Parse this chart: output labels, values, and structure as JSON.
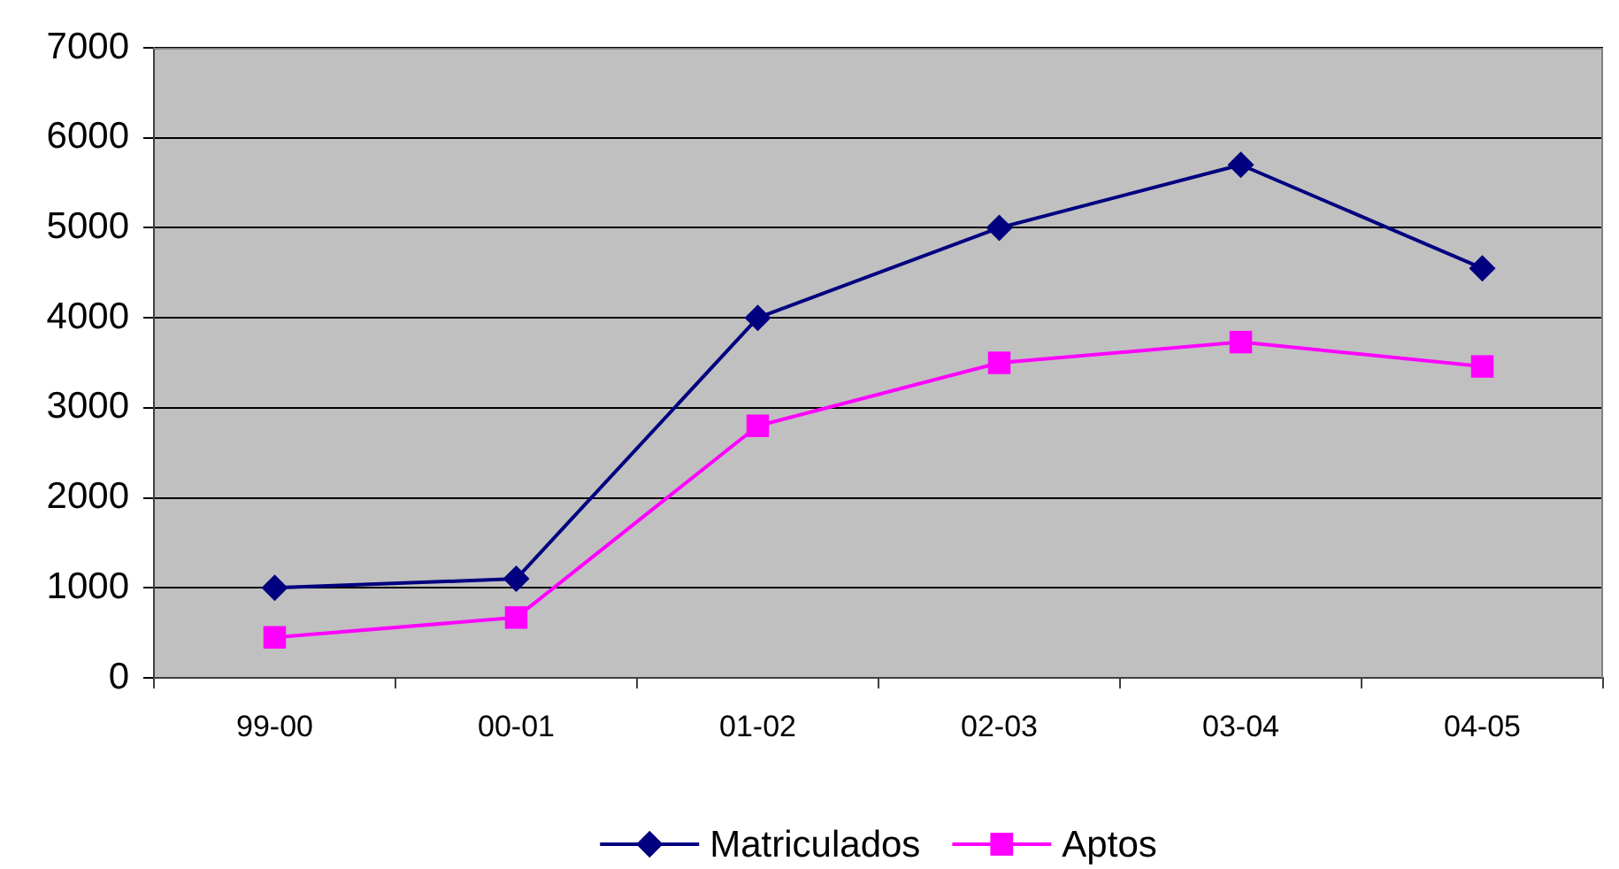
{
  "chart_data": {
    "type": "line",
    "categories": [
      "99-00",
      "00-01",
      "01-02",
      "02-03",
      "03-04",
      "04-05"
    ],
    "series": [
      {
        "name": "Matriculados",
        "color": "#000080",
        "marker": "diamond",
        "values": [
          1000,
          1100,
          4000,
          5000,
          5700,
          4550
        ]
      },
      {
        "name": "Aptos",
        "color": "#ff00ff",
        "marker": "square",
        "values": [
          450,
          670,
          2800,
          3500,
          3730,
          3460
        ]
      }
    ],
    "ylim": [
      0,
      7000
    ],
    "yticks": [
      0,
      1000,
      2000,
      3000,
      4000,
      5000,
      6000,
      7000
    ],
    "grid": "y",
    "legend": "bottom",
    "line_style": "solid"
  }
}
